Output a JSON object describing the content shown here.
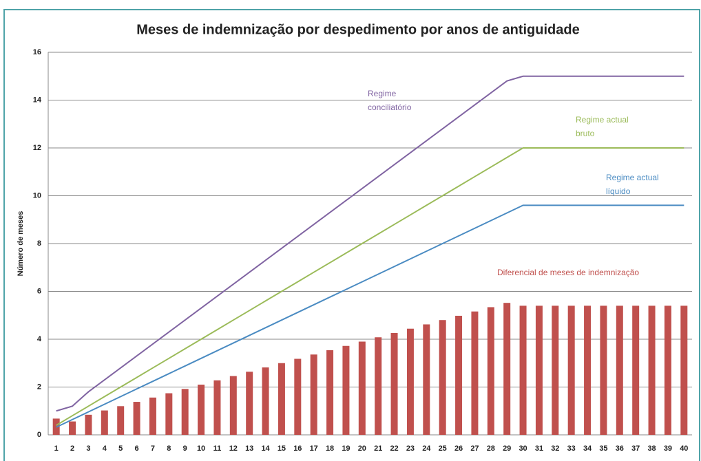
{
  "chart_data": {
    "type": "bar-line",
    "title": "Meses de indemnização por despedimento por  anos de antiguidade",
    "y_label": "Número de meses",
    "categories": [
      1,
      2,
      3,
      4,
      5,
      6,
      7,
      8,
      9,
      10,
      11,
      12,
      13,
      14,
      15,
      16,
      17,
      18,
      19,
      20,
      21,
      22,
      23,
      24,
      25,
      26,
      27,
      28,
      29,
      30,
      31,
      32,
      33,
      34,
      35,
      36,
      37,
      38,
      39,
      40
    ],
    "ylim": [
      0,
      16
    ],
    "yticks": [
      0,
      2,
      4,
      6,
      8,
      10,
      12,
      14,
      16
    ],
    "grid": true,
    "series": [
      {
        "name": "Diferencial de meses de indemnização",
        "type": "bar",
        "color": "#c0504d",
        "values": [
          0.68,
          0.56,
          0.84,
          1.02,
          1.2,
          1.38,
          1.56,
          1.74,
          1.92,
          2.1,
          2.28,
          2.46,
          2.64,
          2.82,
          3.0,
          3.18,
          3.36,
          3.54,
          3.72,
          3.9,
          4.08,
          4.26,
          4.44,
          4.62,
          4.8,
          4.98,
          5.16,
          5.34,
          5.52,
          5.4,
          5.4,
          5.4,
          5.4,
          5.4,
          5.4,
          5.4,
          5.4,
          5.4,
          5.4,
          5.4
        ]
      },
      {
        "name": "Regime conciliatório",
        "type": "line",
        "color": "#8064a2",
        "values": [
          1,
          1.2,
          1.8,
          2.3,
          2.8,
          3.3,
          3.8,
          4.3,
          4.8,
          5.3,
          5.8,
          6.3,
          6.8,
          7.3,
          7.8,
          8.3,
          8.8,
          9.3,
          9.8,
          10.3,
          10.8,
          11.3,
          11.8,
          12.3,
          12.8,
          13.3,
          13.8,
          14.3,
          14.8,
          15,
          15,
          15,
          15,
          15,
          15,
          15,
          15,
          15,
          15,
          15
        ]
      },
      {
        "name": "Regime actual bruto",
        "type": "line",
        "color": "#9bbb59",
        "values": [
          0.4,
          0.8,
          1.2,
          1.6,
          2.0,
          2.4,
          2.8,
          3.2,
          3.6,
          4.0,
          4.4,
          4.8,
          5.2,
          5.6,
          6.0,
          6.4,
          6.8,
          7.2,
          7.6,
          8.0,
          8.4,
          8.8,
          9.2,
          9.6,
          10.0,
          10.4,
          10.8,
          11.2,
          11.6,
          12,
          12,
          12,
          12,
          12,
          12,
          12,
          12,
          12,
          12,
          12
        ]
      },
      {
        "name": "Regime actual líquido",
        "type": "line",
        "color": "#4a8bc2",
        "values": [
          0.32,
          0.64,
          0.96,
          1.28,
          1.6,
          1.92,
          2.24,
          2.56,
          2.88,
          3.2,
          3.52,
          3.84,
          4.16,
          4.48,
          4.8,
          5.12,
          5.44,
          5.76,
          6.08,
          6.4,
          6.72,
          7.04,
          7.36,
          7.68,
          8,
          8.32,
          8.64,
          8.96,
          9.28,
          9.6,
          9.6,
          9.6,
          9.6,
          9.6,
          9.6,
          9.6,
          9.6,
          9.6,
          9.6,
          9.6
        ]
      }
    ]
  }
}
